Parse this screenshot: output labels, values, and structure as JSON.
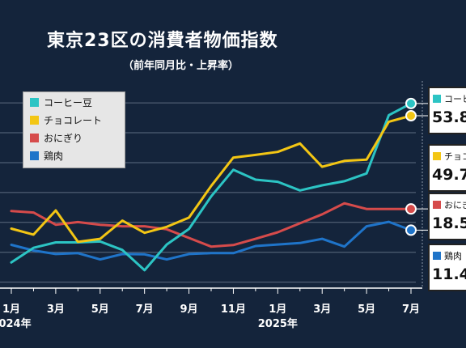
{
  "title": "東京23区の消費者物価指数",
  "subtitle": "（前年同月比・上昇率）",
  "colors": {
    "background": "#14243b",
    "grid": "#5d6b80",
    "coffee": "#2cc4c4",
    "chocolate": "#f3c614",
    "onigiri": "#d64b4b",
    "chicken": "#1f74c9"
  },
  "legend": [
    {
      "label": "コーヒー豆",
      "color": "#2cc4c4"
    },
    {
      "label": "チョコレート",
      "color": "#f3c614"
    },
    {
      "label": "おにぎり",
      "color": "#d64b4b"
    },
    {
      "label": "鶏肉",
      "color": "#1f74c9"
    }
  ],
  "callouts": [
    {
      "name": "コーヒー豆",
      "value": "53.8",
      "color": "#2cc4c4"
    },
    {
      "name": "チョコレート",
      "value": "49.7",
      "color": "#f3c614"
    },
    {
      "name": "おにぎり",
      "value": "18.5",
      "color": "#d64b4b"
    },
    {
      "name": "鶏肉",
      "value": "11.4",
      "color": "#1f74c9"
    }
  ],
  "chart_data": {
    "type": "line",
    "title": "東京23区の消費者物価指数",
    "subtitle": "（前年同月比・上昇率）",
    "x": [
      "2024-01",
      "2024-02",
      "2024-03",
      "2024-04",
      "2024-05",
      "2024-06",
      "2024-07",
      "2024-08",
      "2024-09",
      "2024-10",
      "2024-11",
      "2024-12",
      "2025-01",
      "2025-02",
      "2025-03",
      "2025-04",
      "2025-05",
      "2025-06",
      "2025-07"
    ],
    "x_tick_labels": [
      "1月",
      "",
      "3月",
      "",
      "5月",
      "",
      "7月",
      "",
      "9月",
      "",
      "11月",
      "",
      "1月",
      "",
      "3月",
      "",
      "5月",
      "",
      "7月"
    ],
    "year_labels": [
      {
        "at": "2024-01",
        "label": "2024年"
      },
      {
        "at": "2025-01",
        "label": "2025年"
      }
    ],
    "series": [
      {
        "name": "コーヒー豆",
        "color": "#2cc4c4",
        "values": [
          0.6,
          5.5,
          7.3,
          7.3,
          7.6,
          4.8,
          -2.0,
          6.6,
          11.8,
          22.7,
          31.6,
          28.3,
          27.6,
          24.7,
          26.4,
          27.8,
          30.4,
          49.9,
          53.8
        ]
      },
      {
        "name": "チョコレート",
        "color": "#f3c614",
        "values": [
          11.9,
          9.9,
          18.0,
          7.5,
          8.5,
          14.6,
          10.5,
          12.5,
          15.6,
          26.2,
          35.7,
          36.6,
          37.6,
          40.4,
          32.6,
          34.6,
          35.0,
          47.7,
          49.7
        ]
      },
      {
        "name": "おにぎり",
        "color": "#d64b4b",
        "values": [
          17.8,
          17.3,
          13.2,
          14.1,
          13.2,
          12.7,
          12.7,
          11.7,
          8.8,
          5.9,
          6.4,
          8.5,
          10.7,
          13.7,
          16.7,
          20.4,
          18.5,
          18.5,
          18.5
        ]
      },
      {
        "name": "鶏肉",
        "color": "#1f74c9",
        "values": [
          6.5,
          4.6,
          3.4,
          3.7,
          1.6,
          3.4,
          3.3,
          1.6,
          3.4,
          3.7,
          3.7,
          6.1,
          6.6,
          7.1,
          8.5,
          5.9,
          12.7,
          14.2,
          11.4
        ]
      }
    ],
    "ylim": [
      -8,
      60
    ],
    "grid": true,
    "legend_position": "top-left"
  }
}
